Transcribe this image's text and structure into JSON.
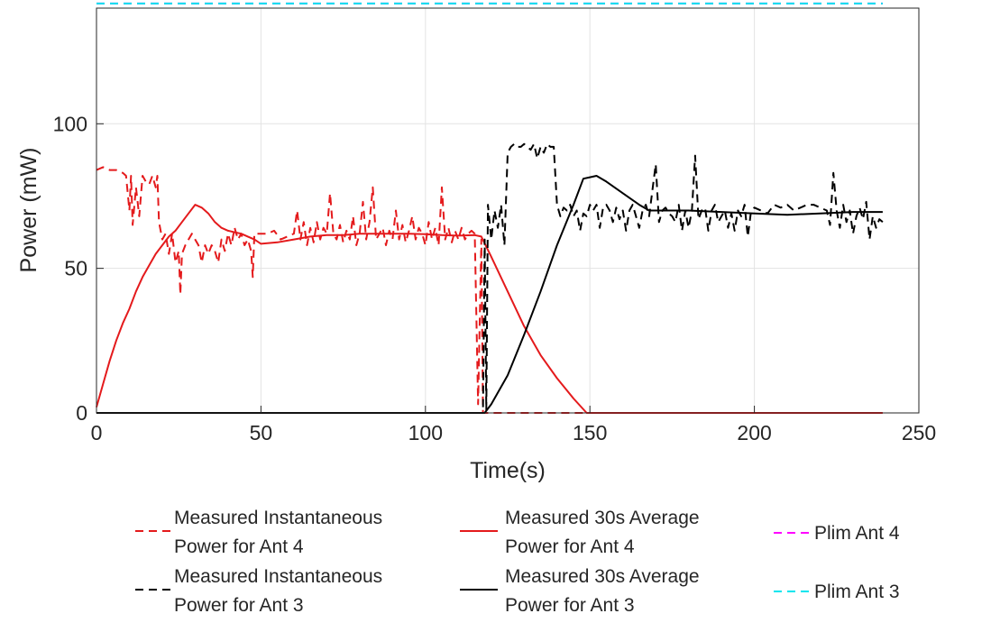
{
  "chart_data": {
    "type": "line",
    "title": "",
    "xlabel": "Time(s)",
    "ylabel": "Power (mW)",
    "xlim": [
      0,
      250
    ],
    "ylim": [
      0,
      140
    ],
    "xticks": [
      0,
      50,
      100,
      150,
      200,
      250
    ],
    "yticks": [
      0,
      50,
      100
    ],
    "grid": true,
    "legend_position": "bottom",
    "series": [
      {
        "key": "inst_ant4",
        "legend_line1": "Measured Instantaneous",
        "legend_line2": "Power for Ant 4",
        "color": "#e41a1c",
        "dash": "dashed",
        "points": [
          [
            0,
            84
          ],
          [
            2,
            85
          ],
          [
            4,
            84
          ],
          [
            6,
            84
          ],
          [
            8,
            83
          ],
          [
            9,
            82
          ],
          [
            10,
            70
          ],
          [
            10.5,
            82
          ],
          [
            11,
            65
          ],
          [
            12,
            78
          ],
          [
            13,
            68
          ],
          [
            14,
            82
          ],
          [
            15,
            80
          ],
          [
            16,
            79
          ],
          [
            17,
            82
          ],
          [
            18,
            78
          ],
          [
            18.5,
            82
          ],
          [
            19,
            66
          ],
          [
            20,
            60
          ],
          [
            21,
            62
          ],
          [
            22,
            55
          ],
          [
            23,
            62
          ],
          [
            24,
            52
          ],
          [
            25,
            56
          ],
          [
            25.5,
            41
          ],
          [
            26,
            55
          ],
          [
            27,
            58
          ],
          [
            28,
            60
          ],
          [
            29,
            62
          ],
          [
            30,
            60
          ],
          [
            31,
            58
          ],
          [
            32,
            52
          ],
          [
            33,
            58
          ],
          [
            34,
            55
          ],
          [
            35,
            58
          ],
          [
            36,
            56
          ],
          [
            37,
            52
          ],
          [
            38,
            60
          ],
          [
            39,
            56
          ],
          [
            40,
            62
          ],
          [
            41,
            58
          ],
          [
            42,
            64
          ],
          [
            43,
            60
          ],
          [
            44,
            62
          ],
          [
            45,
            58
          ],
          [
            46,
            60
          ],
          [
            47,
            56
          ],
          [
            47.5,
            47
          ],
          [
            48,
            62
          ],
          [
            50,
            62
          ],
          [
            52,
            62
          ],
          [
            54,
            63
          ],
          [
            56,
            60
          ],
          [
            58,
            61
          ],
          [
            60,
            62
          ],
          [
            61,
            70
          ],
          [
            62,
            60
          ],
          [
            63,
            66
          ],
          [
            64,
            58
          ],
          [
            65,
            64
          ],
          [
            66,
            59
          ],
          [
            67,
            66
          ],
          [
            68,
            60
          ],
          [
            69,
            64
          ],
          [
            70,
            62
          ],
          [
            71,
            76
          ],
          [
            72,
            62
          ],
          [
            73,
            60
          ],
          [
            74,
            65
          ],
          [
            75,
            59
          ],
          [
            76,
            63
          ],
          [
            77,
            60
          ],
          [
            78,
            68
          ],
          [
            79,
            58
          ],
          [
            80,
            62
          ],
          [
            81,
            73
          ],
          [
            82,
            60
          ],
          [
            83,
            66
          ],
          [
            84,
            78
          ],
          [
            85,
            60
          ],
          [
            86,
            62
          ],
          [
            87,
            64
          ],
          [
            88,
            58
          ],
          [
            89,
            63
          ],
          [
            90,
            60
          ],
          [
            91,
            70
          ],
          [
            92,
            60
          ],
          [
            93,
            65
          ],
          [
            94,
            59
          ],
          [
            95,
            63
          ],
          [
            96,
            68
          ],
          [
            97,
            60
          ],
          [
            98,
            64
          ],
          [
            99,
            62
          ],
          [
            100,
            58
          ],
          [
            101,
            66
          ],
          [
            102,
            60
          ],
          [
            103,
            64
          ],
          [
            104,
            58
          ],
          [
            105,
            78
          ],
          [
            106,
            60
          ],
          [
            107,
            64
          ],
          [
            108,
            59
          ],
          [
            109,
            63
          ],
          [
            110,
            60
          ],
          [
            111,
            64
          ],
          [
            112,
            60
          ],
          [
            113,
            62
          ],
          [
            114,
            63
          ],
          [
            115,
            62
          ],
          [
            116,
            3
          ],
          [
            117,
            60
          ],
          [
            117.5,
            0
          ],
          [
            120,
            0
          ],
          [
            150,
            0
          ],
          [
            200,
            0
          ],
          [
            239,
            0
          ]
        ]
      },
      {
        "key": "avg_ant4",
        "legend_line1": "Measured 30s Average",
        "legend_line2": "Power for Ant 4",
        "color": "#e41a1c",
        "dash": "solid",
        "points": [
          [
            0,
            2
          ],
          [
            2,
            10
          ],
          [
            4,
            18
          ],
          [
            6,
            25
          ],
          [
            8,
            31
          ],
          [
            10,
            36
          ],
          [
            12,
            42
          ],
          [
            14,
            47
          ],
          [
            16,
            51
          ],
          [
            18,
            55
          ],
          [
            20,
            58
          ],
          [
            22,
            61
          ],
          [
            24,
            63
          ],
          [
            26,
            66
          ],
          [
            28,
            69
          ],
          [
            30,
            72
          ],
          [
            32,
            71
          ],
          [
            34,
            69
          ],
          [
            36,
            66
          ],
          [
            38,
            64
          ],
          [
            40,
            63
          ],
          [
            42,
            62.5
          ],
          [
            44,
            62
          ],
          [
            46,
            61
          ],
          [
            48,
            60
          ],
          [
            50,
            58.5
          ],
          [
            55,
            59
          ],
          [
            60,
            60
          ],
          [
            65,
            61
          ],
          [
            70,
            61.5
          ],
          [
            75,
            61.5
          ],
          [
            80,
            62
          ],
          [
            85,
            62
          ],
          [
            90,
            62
          ],
          [
            95,
            62
          ],
          [
            100,
            61.8
          ],
          [
            105,
            61.5
          ],
          [
            110,
            61.3
          ],
          [
            115,
            61.5
          ],
          [
            117,
            61
          ],
          [
            120,
            54
          ],
          [
            125,
            42
          ],
          [
            130,
            30
          ],
          [
            135,
            20
          ],
          [
            140,
            12
          ],
          [
            145,
            5
          ],
          [
            149,
            0
          ],
          [
            150,
            0
          ],
          [
            200,
            0
          ],
          [
            239,
            0
          ]
        ]
      },
      {
        "key": "inst_ant3",
        "legend_line1": "Measured Instantaneous",
        "legend_line2": "Power for Ant 3",
        "color": "#000000",
        "dash": "dashed",
        "points": [
          [
            0,
            0
          ],
          [
            60,
            0
          ],
          [
            117,
            0
          ],
          [
            117.5,
            0
          ],
          [
            118,
            60
          ],
          [
            118.5,
            1
          ],
          [
            119,
            72
          ],
          [
            120,
            60
          ],
          [
            121,
            70
          ],
          [
            122,
            64
          ],
          [
            123,
            72
          ],
          [
            124,
            58
          ],
          [
            125,
            90
          ],
          [
            126,
            92
          ],
          [
            127,
            93
          ],
          [
            128,
            92
          ],
          [
            129,
            92
          ],
          [
            130,
            93
          ],
          [
            131,
            92
          ],
          [
            132,
            91
          ],
          [
            133,
            93
          ],
          [
            134,
            88
          ],
          [
            135,
            92
          ],
          [
            136,
            90
          ],
          [
            137,
            93
          ],
          [
            138,
            92
          ],
          [
            139,
            92
          ],
          [
            140,
            72
          ],
          [
            141,
            68
          ],
          [
            142,
            71
          ],
          [
            143,
            70
          ],
          [
            144,
            72
          ],
          [
            145,
            68
          ],
          [
            146,
            70
          ],
          [
            147,
            63
          ],
          [
            148,
            69
          ],
          [
            149,
            68
          ],
          [
            150,
            72
          ],
          [
            151,
            70
          ],
          [
            152,
            72
          ],
          [
            153,
            64
          ],
          [
            154,
            71
          ],
          [
            155,
            72
          ],
          [
            156,
            70
          ],
          [
            157,
            66
          ],
          [
            158,
            71
          ],
          [
            159,
            67
          ],
          [
            160,
            70
          ],
          [
            161,
            63
          ],
          [
            162,
            70
          ],
          [
            163,
            72
          ],
          [
            164,
            68
          ],
          [
            165,
            64
          ],
          [
            166,
            70
          ],
          [
            167,
            72
          ],
          [
            168,
            68
          ],
          [
            169,
            77
          ],
          [
            170,
            86
          ],
          [
            171,
            66
          ],
          [
            172,
            70
          ],
          [
            173,
            71
          ],
          [
            174,
            69
          ],
          [
            175,
            68
          ],
          [
            176,
            66
          ],
          [
            177,
            72
          ],
          [
            178,
            63
          ],
          [
            179,
            70
          ],
          [
            180,
            64
          ],
          [
            181,
            70
          ],
          [
            182,
            89
          ],
          [
            183,
            67
          ],
          [
            184,
            70
          ],
          [
            185,
            71
          ],
          [
            186,
            63
          ],
          [
            187,
            70
          ],
          [
            188,
            72
          ],
          [
            189,
            66
          ],
          [
            190,
            68
          ],
          [
            191,
            70
          ],
          [
            192,
            64
          ],
          [
            193,
            69
          ],
          [
            194,
            63
          ],
          [
            195,
            70
          ],
          [
            196,
            68
          ],
          [
            197,
            72
          ],
          [
            198,
            61
          ],
          [
            199,
            70
          ],
          [
            200,
            71
          ],
          [
            202,
            70
          ],
          [
            204,
            69
          ],
          [
            206,
            72
          ],
          [
            208,
            71
          ],
          [
            210,
            72
          ],
          [
            212,
            70
          ],
          [
            214,
            71
          ],
          [
            216,
            72
          ],
          [
            218,
            72
          ],
          [
            220,
            71
          ],
          [
            222,
            70
          ],
          [
            223,
            65
          ],
          [
            224,
            83
          ],
          [
            225,
            70
          ],
          [
            226,
            64
          ],
          [
            227,
            72
          ],
          [
            228,
            66
          ],
          [
            229,
            70
          ],
          [
            230,
            62
          ],
          [
            231,
            68
          ],
          [
            232,
            71
          ],
          [
            233,
            67
          ],
          [
            234,
            73
          ],
          [
            235,
            60
          ],
          [
            236,
            68
          ],
          [
            237,
            64
          ],
          [
            238,
            67
          ],
          [
            239,
            66
          ]
        ]
      },
      {
        "key": "avg_ant3",
        "legend_line1": "Measured 30s Average",
        "legend_line2": "Power for Ant 3",
        "color": "#000000",
        "dash": "solid",
        "points": [
          [
            0,
            0
          ],
          [
            50,
            0
          ],
          [
            100,
            0
          ],
          [
            117,
            0
          ],
          [
            118,
            0
          ],
          [
            120,
            3
          ],
          [
            125,
            13
          ],
          [
            130,
            27
          ],
          [
            135,
            42
          ],
          [
            140,
            58
          ],
          [
            145,
            72
          ],
          [
            148,
            81
          ],
          [
            150,
            81.5
          ],
          [
            152,
            82
          ],
          [
            155,
            80
          ],
          [
            160,
            76
          ],
          [
            165,
            72
          ],
          [
            168,
            70
          ],
          [
            170,
            70
          ],
          [
            180,
            70
          ],
          [
            190,
            69.5
          ],
          [
            200,
            69
          ],
          [
            210,
            68.5
          ],
          [
            220,
            69
          ],
          [
            230,
            69.5
          ],
          [
            239,
            69.5
          ]
        ]
      },
      {
        "key": "plim_ant4",
        "legend_line1": "Plim Ant 4",
        "legend_line2": "",
        "color": "#ff00ff",
        "dash": "dashed",
        "points": [
          [
            0,
            141.6
          ],
          [
            239,
            141.6
          ]
        ]
      },
      {
        "key": "plim_ant3",
        "legend_line1": "Plim Ant 3",
        "legend_line2": "",
        "color": "#00e5ee",
        "dash": "dashed",
        "points": [
          [
            0,
            141.6
          ],
          [
            239,
            141.6
          ]
        ]
      }
    ]
  }
}
